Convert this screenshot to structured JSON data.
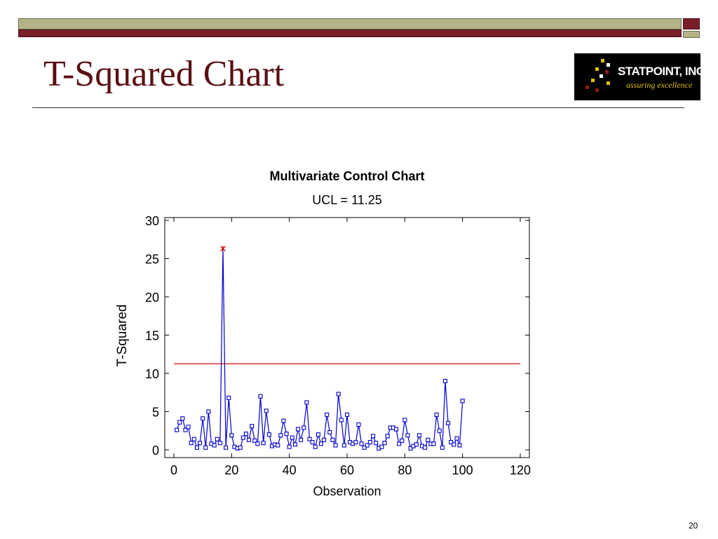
{
  "slide": {
    "title": "T-Squared Chart",
    "page_number": "20"
  },
  "logo": {
    "name": "STATPOINT, INC.",
    "tagline": "assuring excellence"
  },
  "colors": {
    "title": "#5a0f14",
    "series": "#0000cc",
    "ucl": "#e03030",
    "outlier": "#cc0000",
    "bar_olive": "#b3b387",
    "bar_maroon": "#7a1e2a"
  },
  "chart_data": {
    "type": "line",
    "title": "Multivariate Control Chart",
    "subtitle": "UCL = 11.25",
    "xlabel": "Observation",
    "ylabel": "T-Squared",
    "xlim": [
      0,
      120
    ],
    "ylim": [
      0,
      30
    ],
    "xticks": [
      0,
      20,
      40,
      60,
      80,
      100,
      120
    ],
    "yticks": [
      0,
      5,
      10,
      15,
      20,
      25,
      30
    ],
    "ucl": 11.25,
    "outlier_index": 17,
    "x": [
      1,
      2,
      3,
      4,
      5,
      6,
      7,
      8,
      9,
      10,
      11,
      12,
      13,
      14,
      15,
      16,
      17,
      18,
      19,
      20,
      21,
      22,
      23,
      24,
      25,
      26,
      27,
      28,
      29,
      30,
      31,
      32,
      33,
      34,
      35,
      36,
      37,
      38,
      39,
      40,
      41,
      42,
      43,
      44,
      45,
      46,
      47,
      48,
      49,
      50,
      51,
      52,
      53,
      54,
      55,
      56,
      57,
      58,
      59,
      60,
      61,
      62,
      63,
      64,
      65,
      66,
      67,
      68,
      69,
      70,
      71,
      72,
      73,
      74,
      75,
      76,
      77,
      78,
      79,
      80,
      81,
      82,
      83,
      84,
      85,
      86,
      87,
      88,
      89,
      90,
      91,
      92,
      93,
      94,
      95,
      96,
      97,
      98,
      99,
      100
    ],
    "values": [
      2.6,
      3.6,
      4.1,
      2.6,
      3.0,
      0.9,
      1.4,
      0.3,
      0.9,
      4.1,
      0.3,
      5.0,
      0.8,
      0.6,
      1.4,
      0.9,
      26.3,
      0.3,
      6.8,
      1.9,
      0.4,
      0.2,
      0.3,
      1.6,
      2.1,
      1.3,
      3.1,
      1.2,
      0.8,
      7.0,
      0.9,
      5.1,
      2.0,
      0.5,
      0.7,
      0.6,
      1.9,
      3.8,
      2.1,
      0.4,
      1.6,
      0.7,
      2.7,
      1.3,
      2.9,
      6.2,
      1.4,
      1.0,
      0.4,
      2.0,
      0.8,
      1.3,
      4.6,
      2.3,
      1.3,
      0.6,
      7.3,
      3.9,
      0.6,
      4.6,
      1.0,
      0.8,
      1.0,
      3.3,
      0.8,
      0.3,
      0.6,
      1.0,
      1.8,
      0.9,
      0.2,
      0.4,
      0.9,
      1.8,
      2.9,
      2.9,
      2.7,
      0.8,
      1.2,
      3.9,
      1.9,
      0.2,
      0.5,
      0.7,
      1.9,
      0.5,
      0.3,
      1.3,
      0.8,
      0.8,
      4.6,
      2.5,
      0.3,
      9.0,
      3.5,
      1.0,
      0.7,
      1.5,
      0.6,
      6.4
    ]
  }
}
